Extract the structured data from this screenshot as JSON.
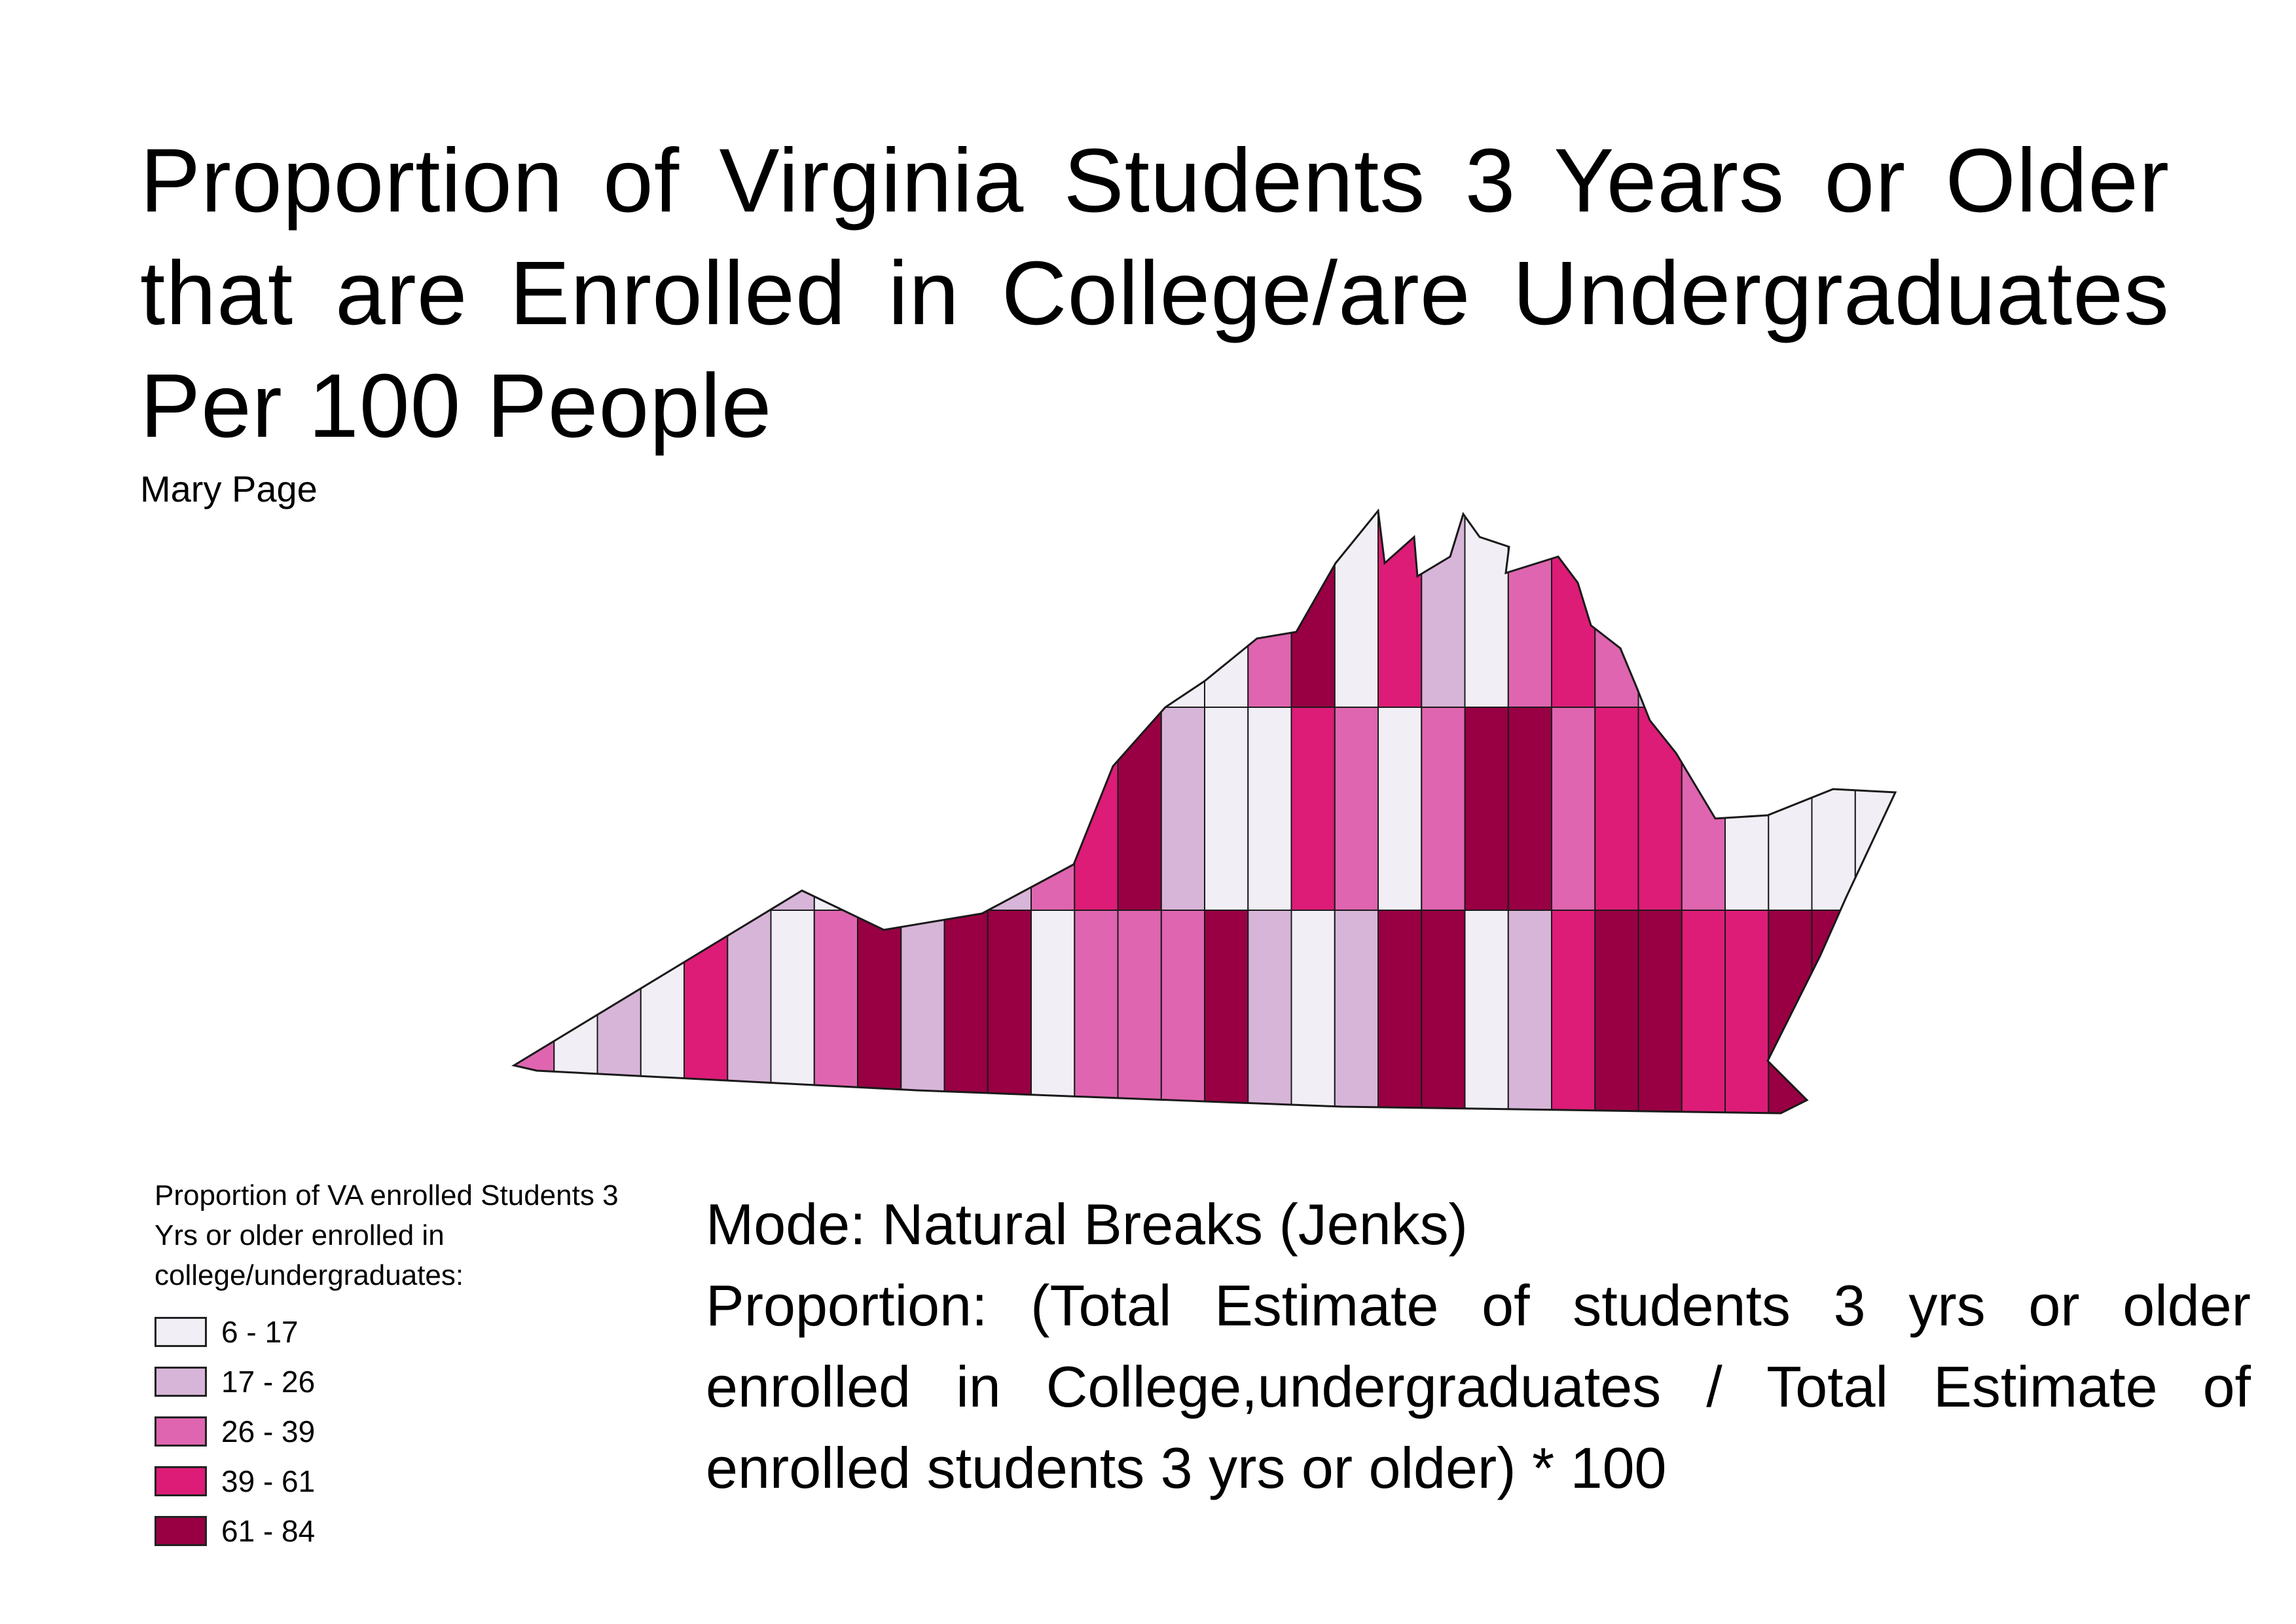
{
  "title": "Proportion of Virginia Students 3 Years or Older that are Enrolled in College/are Undergraduates Per 100 People",
  "author": "Mary Page",
  "legend": {
    "title": "Proportion of VA enrolled Students 3 Yrs or older enrolled in college/undergraduates:",
    "classes": [
      {
        "label": "6 - 17",
        "color": "#f1eef6"
      },
      {
        "label": "17 - 26",
        "color": "#d7b5d8"
      },
      {
        "label": "26 - 39",
        "color": "#df65b0"
      },
      {
        "label": "39 - 61",
        "color": "#dd1c77"
      },
      {
        "label": "61 - 84",
        "color": "#980043"
      }
    ]
  },
  "notes": {
    "mode": "Mode: Natural Breaks (Jenks)",
    "formula": "Proportion: (Total Estimate of students 3 yrs or older enrolled in College,undergraduates / Total Estimate of enrolled students 3 yrs or older) * 100"
  },
  "map": {
    "region": "Virginia",
    "border_color": "#1a1a1a"
  }
}
